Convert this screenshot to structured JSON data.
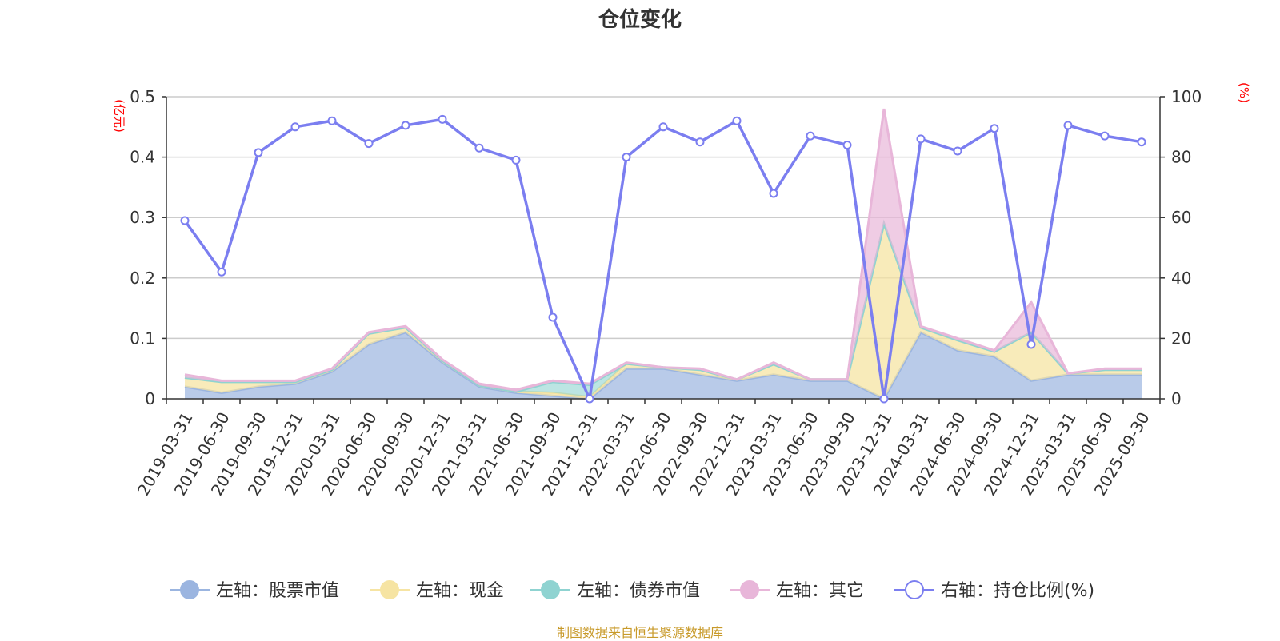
{
  "title": "仓位变化",
  "source": "制图数据来自恒生聚源数据库",
  "colors": {
    "stock": "#9bb5e0",
    "cash": "#f6e4a3",
    "bond": "#8fd3d1",
    "other": "#e8b6d9",
    "ratio": "#7b7ef0",
    "axis": "#333333",
    "grid": "#cccccc",
    "unit": "#ff0000"
  },
  "chart_data": {
    "type": "area",
    "title": "仓位变化",
    "left_unit": "(亿元)",
    "right_unit": "(%)",
    "left_ticks": [
      "0",
      "0.1",
      "0.2",
      "0.3",
      "0.4",
      "0.5"
    ],
    "right_ticks": [
      "0",
      "20",
      "40",
      "60",
      "80",
      "100"
    ],
    "left_ylim": [
      0,
      0.5
    ],
    "right_ylim": [
      0,
      100
    ],
    "categories": [
      "2019-03-31",
      "2019-06-30",
      "2019-09-30",
      "2019-12-31",
      "2020-03-31",
      "2020-06-30",
      "2020-09-30",
      "2020-12-31",
      "2021-03-31",
      "2021-06-30",
      "2021-09-30",
      "2021-12-31",
      "2022-03-31",
      "2022-06-30",
      "2022-09-30",
      "2022-12-31",
      "2023-03-31",
      "2023-06-30",
      "2023-09-30",
      "2023-12-31",
      "2024-03-31",
      "2024-06-30",
      "2024-09-30",
      "2024-12-31",
      "2025-03-31",
      "2025-06-30",
      "2025-09-30"
    ],
    "series": [
      {
        "name": "左轴：股票市值",
        "axis": "left",
        "stack": true,
        "values": [
          0.02,
          0.01,
          0.02,
          0.025,
          0.045,
          0.09,
          0.11,
          0.06,
          0.02,
          0.01,
          0.005,
          0,
          0.05,
          0.05,
          0.04,
          0.03,
          0.04,
          0.03,
          0.03,
          0,
          0.11,
          0.08,
          0.07,
          0.03,
          0.04,
          0.04,
          0.04
        ]
      },
      {
        "name": "左轴：现金",
        "axis": "left",
        "stack": true,
        "values": [
          0.015,
          0.018,
          0.008,
          0.003,
          0.003,
          0.018,
          0.008,
          0.003,
          0.002,
          0.002,
          0.005,
          0.003,
          0.008,
          0.002,
          0.008,
          0.002,
          0.017,
          0.002,
          0.002,
          0.29,
          0.008,
          0.017,
          0.008,
          0.08,
          0.002,
          0.008,
          0.008
        ]
      },
      {
        "name": "左轴：债券市值",
        "axis": "left",
        "stack": true,
        "values": [
          0,
          0,
          0,
          0,
          0,
          0,
          0,
          0,
          0,
          0,
          0.018,
          0.02,
          0,
          0,
          0,
          0,
          0,
          0,
          0,
          0,
          0,
          0,
          0,
          0,
          0,
          0,
          0
        ]
      },
      {
        "name": "左轴：其它",
        "axis": "left",
        "stack": true,
        "values": [
          0.005,
          0.002,
          0.002,
          0.002,
          0.002,
          0.002,
          0.002,
          0.002,
          0.003,
          0.003,
          0.002,
          0.002,
          0.002,
          0,
          0.002,
          0,
          0.003,
          0,
          0,
          0.19,
          0.002,
          0.003,
          0.002,
          0.05,
          0,
          0.002,
          0.002
        ]
      },
      {
        "name": "右轴：持仓比例(%)",
        "axis": "right",
        "stack": false,
        "values": [
          59,
          42,
          81.5,
          90,
          92,
          84.5,
          90.5,
          92.5,
          83,
          79,
          27,
          0,
          80,
          90,
          85,
          92,
          68,
          87,
          84,
          0,
          86,
          82,
          89.5,
          18,
          90.5,
          87,
          85
        ]
      }
    ]
  }
}
